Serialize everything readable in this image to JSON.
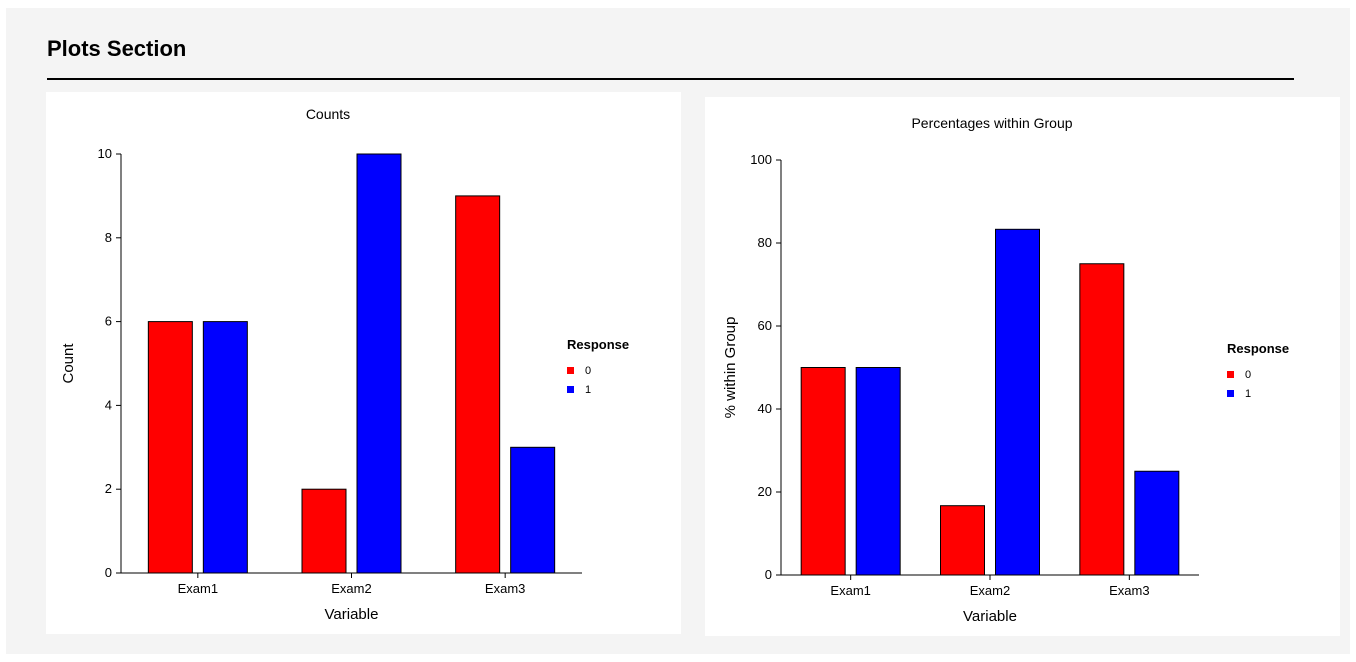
{
  "section": {
    "title": "Plots Section"
  },
  "colors": {
    "series_0": "#ff0000",
    "series_1": "#0000ff",
    "panel_background": "#ffffff",
    "section_background": "#f4f4f4"
  },
  "chart_data": [
    {
      "type": "bar",
      "title": "Counts",
      "xlabel": "Variable",
      "ylabel": "Count",
      "categories": [
        "Exam1",
        "Exam2",
        "Exam3"
      ],
      "series": [
        {
          "name": "0",
          "values": [
            6,
            2,
            9
          ]
        },
        {
          "name": "1",
          "values": [
            6,
            10,
            3
          ]
        }
      ],
      "ylim": [
        0,
        10
      ],
      "yticks": [
        0,
        2,
        4,
        6,
        8,
        10
      ],
      "legend_title": "Response",
      "legend_placement": "right",
      "grid": false
    },
    {
      "type": "bar",
      "title": "Percentages within Group",
      "xlabel": "Variable",
      "ylabel": "% within Group",
      "categories": [
        "Exam1",
        "Exam2",
        "Exam3"
      ],
      "series": [
        {
          "name": "0",
          "values": [
            50,
            16.7,
            75
          ]
        },
        {
          "name": "1",
          "values": [
            50,
            83.3,
            25
          ]
        }
      ],
      "ylim": [
        0,
        100
      ],
      "yticks": [
        0,
        20,
        40,
        60,
        80,
        100
      ],
      "legend_title": "Response",
      "legend_placement": "right",
      "grid": false
    }
  ]
}
